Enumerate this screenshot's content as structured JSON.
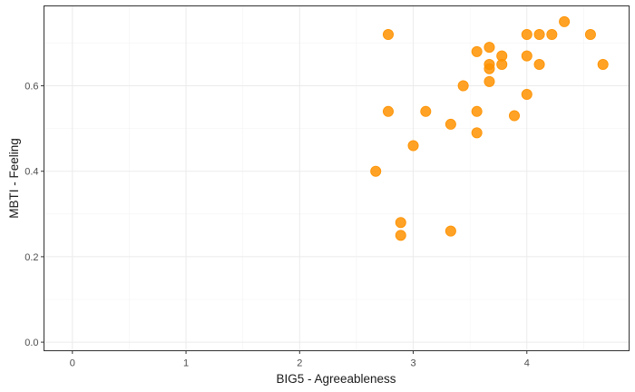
{
  "chart_data": {
    "type": "scatter",
    "title": "",
    "xlabel": "BIG5 - Agreeableness",
    "ylabel": "MBTI - Feeling",
    "xlim": [
      -0.25,
      4.9
    ],
    "ylim": [
      -0.02,
      0.787
    ],
    "x_ticks": [
      0,
      1,
      2,
      3,
      4
    ],
    "y_ticks": [
      0.0,
      0.2,
      0.4,
      0.6
    ],
    "x_tick_labels": [
      "0",
      "1",
      "2",
      "3",
      "4"
    ],
    "y_tick_labels": [
      "0.0",
      "0.2",
      "0.4",
      "0.6"
    ],
    "grid": true,
    "point_color": "#ff9200",
    "series": [
      {
        "points": [
          {
            "x": 2.67,
            "y": 0.4
          },
          {
            "x": 2.78,
            "y": 0.72
          },
          {
            "x": 2.78,
            "y": 0.54
          },
          {
            "x": 2.89,
            "y": 0.28
          },
          {
            "x": 2.89,
            "y": 0.25
          },
          {
            "x": 3.0,
            "y": 0.46
          },
          {
            "x": 3.11,
            "y": 0.54
          },
          {
            "x": 3.33,
            "y": 0.51
          },
          {
            "x": 3.33,
            "y": 0.26
          },
          {
            "x": 3.44,
            "y": 0.6
          },
          {
            "x": 3.56,
            "y": 0.68
          },
          {
            "x": 3.56,
            "y": 0.54
          },
          {
            "x": 3.56,
            "y": 0.49
          },
          {
            "x": 3.67,
            "y": 0.69
          },
          {
            "x": 3.67,
            "y": 0.65
          },
          {
            "x": 3.67,
            "y": 0.64
          },
          {
            "x": 3.67,
            "y": 0.61
          },
          {
            "x": 3.78,
            "y": 0.67
          },
          {
            "x": 3.78,
            "y": 0.65
          },
          {
            "x": 3.89,
            "y": 0.53
          },
          {
            "x": 4.0,
            "y": 0.72
          },
          {
            "x": 4.0,
            "y": 0.67
          },
          {
            "x": 4.0,
            "y": 0.58
          },
          {
            "x": 4.11,
            "y": 0.72
          },
          {
            "x": 4.11,
            "y": 0.65
          },
          {
            "x": 4.22,
            "y": 0.72
          },
          {
            "x": 4.33,
            "y": 0.75
          },
          {
            "x": 4.56,
            "y": 0.72
          },
          {
            "x": 4.67,
            "y": 0.65
          }
        ]
      }
    ]
  }
}
